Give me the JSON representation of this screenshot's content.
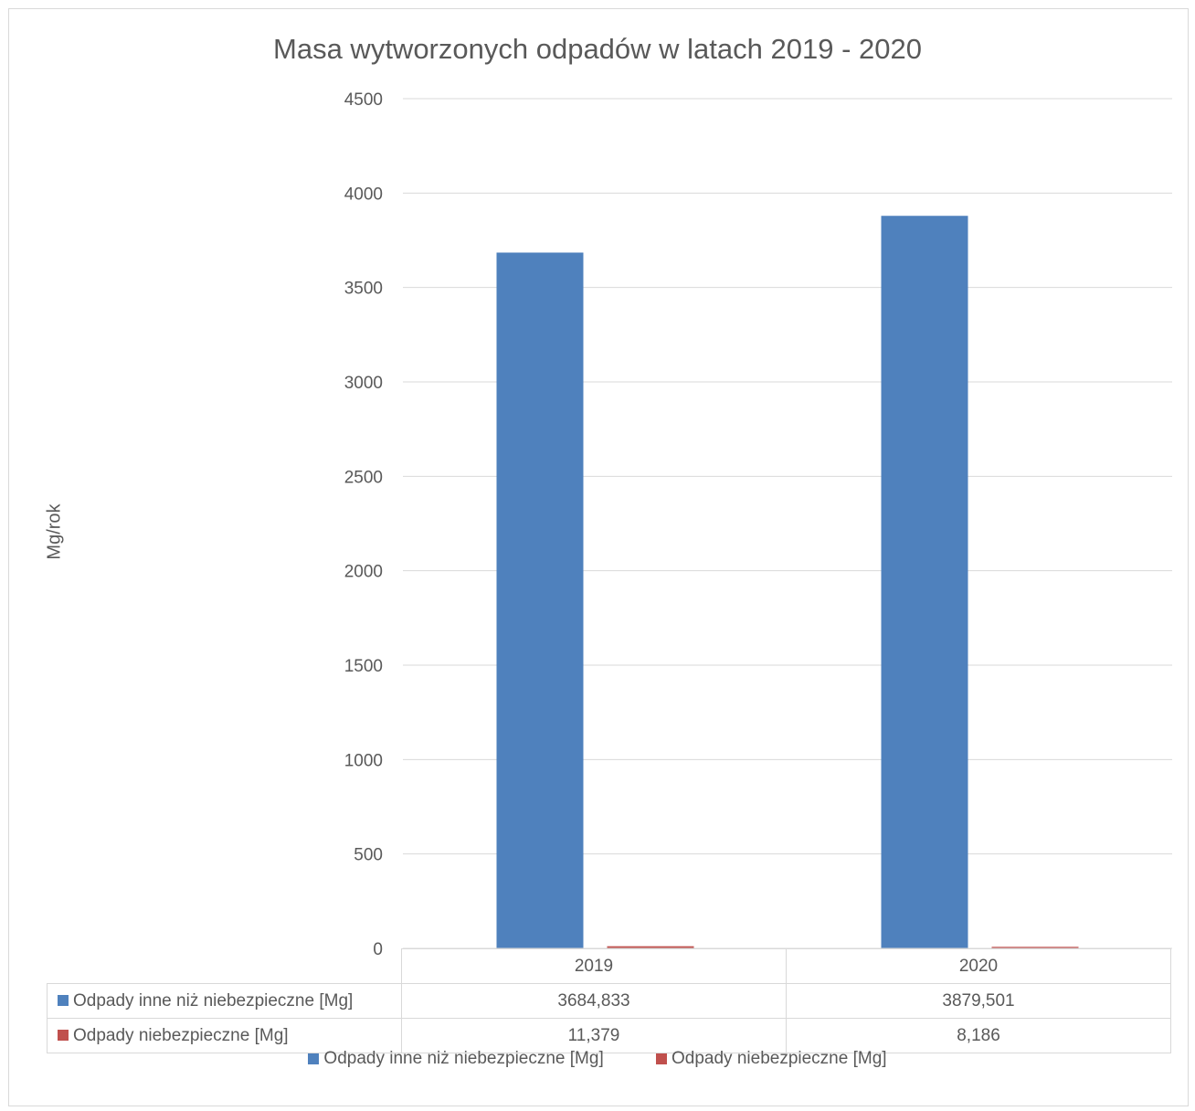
{
  "chart_data": {
    "type": "bar",
    "title": "Masa wytworzonych odpadów w latach 2019 - 2020",
    "ylabel": "Mg/rok",
    "xlabel": "",
    "categories": [
      "2019",
      "2020"
    ],
    "ylim": [
      0,
      4500
    ],
    "yticks": [
      "0",
      "500",
      "1000",
      "1500",
      "2000",
      "2500",
      "3000",
      "3500",
      "4000",
      "4500"
    ],
    "grid": true,
    "legend_position": "bottom",
    "series": [
      {
        "name": "Odpady inne niż niebezpieczne [Mg]",
        "values": [
          3684.833,
          3879.501
        ],
        "labels": [
          "3684,833",
          "3879,501"
        ],
        "color": "#4f81bd"
      },
      {
        "name": "Odpady niebezpieczne [Mg]",
        "values": [
          11.379,
          8.186
        ],
        "labels": [
          "11,379",
          "8,186"
        ],
        "color": "#c0504d"
      }
    ]
  }
}
